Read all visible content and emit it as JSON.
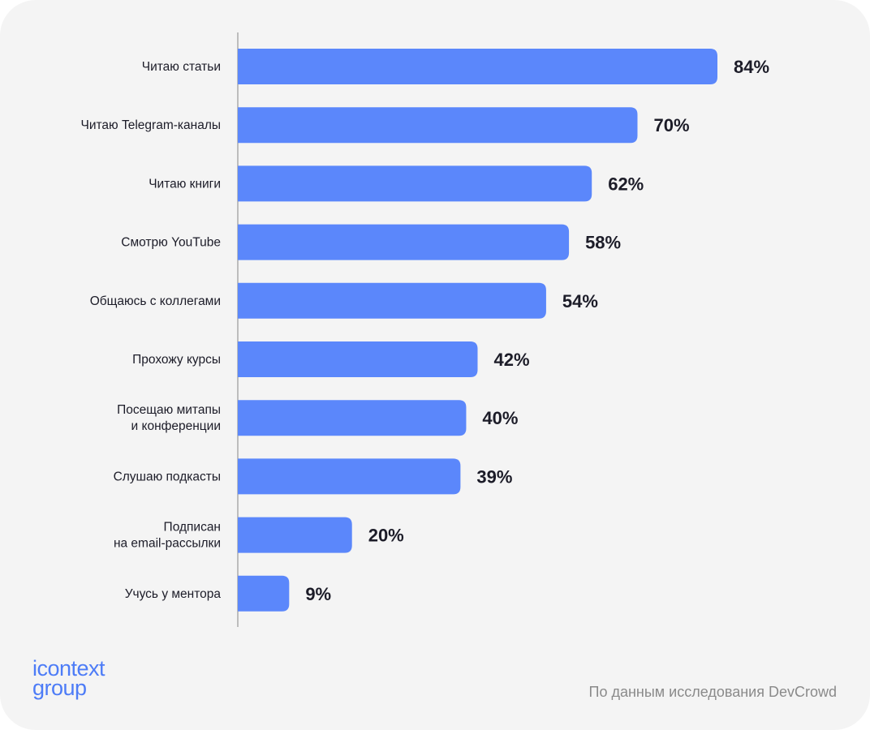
{
  "chart_data": {
    "type": "bar",
    "orientation": "horizontal",
    "categories": [
      [
        "Читаю статьи"
      ],
      [
        "Читаю Telegram-каналы"
      ],
      [
        "Читаю книги"
      ],
      [
        "Смотрю YouTube"
      ],
      [
        "Общаюсь с коллегами"
      ],
      [
        "Прохожу курсы"
      ],
      [
        "Посещаю митапы",
        "и конференции"
      ],
      [
        "Слушаю подкасты"
      ],
      [
        "Подписан",
        "на email-рассылки"
      ],
      [
        "Учусь у ментора"
      ]
    ],
    "values": [
      84,
      70,
      62,
      58,
      54,
      42,
      40,
      39,
      20,
      9
    ],
    "value_labels": [
      "84%",
      "70%",
      "62%",
      "58%",
      "54%",
      "42%",
      "40%",
      "39%",
      "20%",
      "9%"
    ],
    "unit": "%",
    "xlim": [
      0,
      100
    ],
    "bar_color": "#5b87fb",
    "axis_color": "#bdbdbd",
    "grid": false
  },
  "brand": {
    "line1": "icontext",
    "line2": "group",
    "color": "#4d7cf7"
  },
  "source_note": "По данным исследования DevCrowd"
}
